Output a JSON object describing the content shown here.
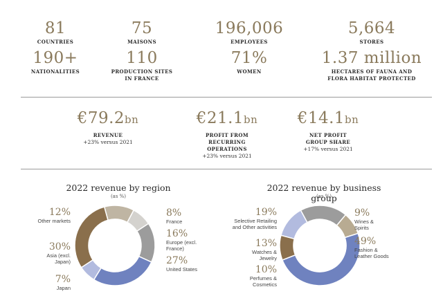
{
  "key_figures": [
    {
      "value": "81",
      "caption": "COUNTRIES"
    },
    {
      "value": "75",
      "caption": "MAISONS"
    },
    {
      "value": "196,006",
      "caption": "EMPLOYEES"
    },
    {
      "value": "5,664",
      "caption": "STORES"
    },
    {
      "value": "190+",
      "caption": "NATIONALITIES"
    },
    {
      "value": "110",
      "caption": "PRODUCTION SITES IN FRANCE"
    },
    {
      "value": "71%",
      "caption": "WOMEN"
    },
    {
      "value": "1.37 million",
      "caption": "HECTARES OF FAUNA AND FLORA HABITAT PROTECTED"
    }
  ],
  "financials": [
    {
      "amount": "€79.2",
      "unit": "bn",
      "caption": "REVENUE",
      "change": "+23% versus 2021"
    },
    {
      "amount": "€21.1",
      "unit": "bn",
      "caption": "PROFIT FROM RECURRING OPERATIONS",
      "change": "+23% versus 2021"
    },
    {
      "amount": "€14.1",
      "unit": "bn",
      "caption": "NET PROFIT GROUP SHARE",
      "change": "+17% versus 2021"
    }
  ],
  "chart_data": [
    {
      "type": "pie",
      "title": "2022 revenue by region",
      "subtitle": "(as %)",
      "slices": [
        {
          "label": "France",
          "value": 8,
          "display": "8%",
          "color": "#d4d2ce"
        },
        {
          "label": "Europe (excl. France)",
          "value": 16,
          "display": "16%",
          "color": "#9c9c9c"
        },
        {
          "label": "United States",
          "value": 27,
          "display": "27%",
          "color": "#6f82bf"
        },
        {
          "label": "Japan",
          "value": 7,
          "display": "7%",
          "color": "#b2bbdf"
        },
        {
          "label": "Asia (excl. Japan)",
          "value": 30,
          "display": "30%",
          "color": "#8a6f4c"
        },
        {
          "label": "Other markets",
          "value": 12,
          "display": "12%",
          "color": "#bfb5a3"
        }
      ]
    },
    {
      "type": "pie",
      "title": "2022 revenue by business group",
      "subtitle": "(as %)",
      "slices": [
        {
          "label": "Wines & Spirits",
          "value": 9,
          "display": "9%",
          "color": "#b8ab92"
        },
        {
          "label": "Fashion & Leather Goods",
          "value": 49,
          "display": "49%",
          "color": "#6f82bf"
        },
        {
          "label": "Perfumes & Cosmetics",
          "value": 10,
          "display": "10%",
          "color": "#8a6f4c"
        },
        {
          "label": "Watches & Jewelry",
          "value": 13,
          "display": "13%",
          "color": "#b2bbdf"
        },
        {
          "label": "Selective Retailing and Other activities",
          "value": 19,
          "display": "19%",
          "color": "#9c9c9c"
        }
      ]
    }
  ]
}
